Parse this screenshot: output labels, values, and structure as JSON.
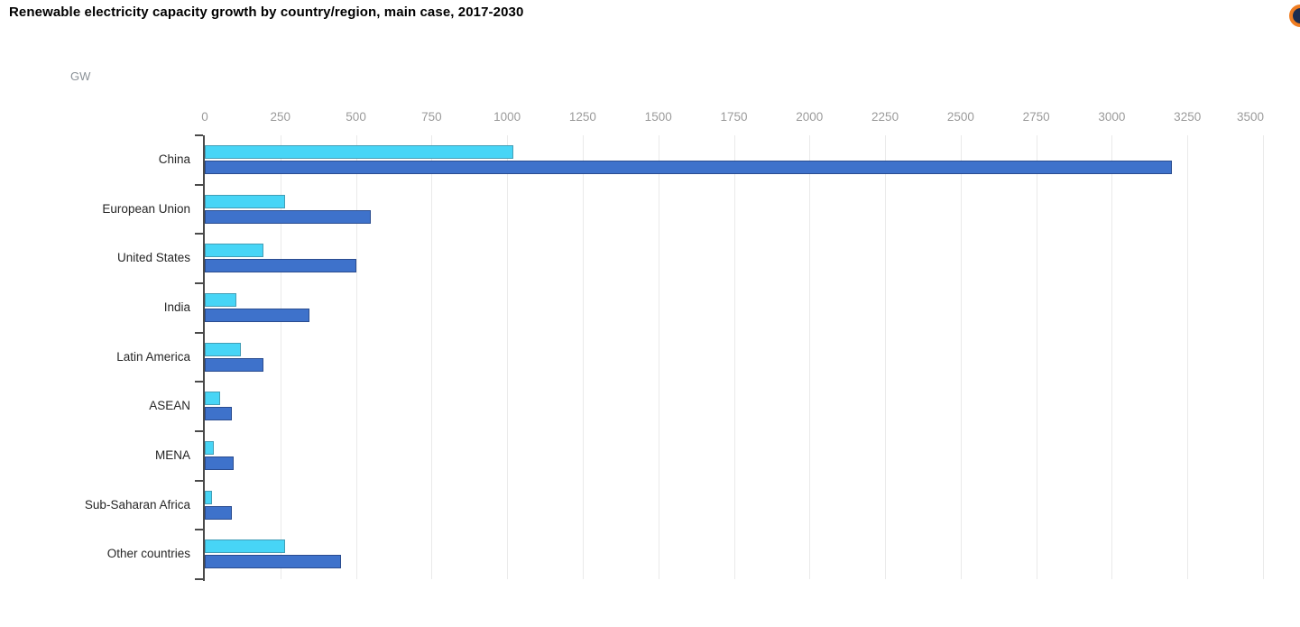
{
  "page": {
    "title": "Renewable electricity capacity growth by country/region, main case, 2017-2030",
    "unit_label": "GW"
  },
  "icons": {
    "brand_circle": "partial circle button cut off at right edge, orange ring with dark navy fill"
  },
  "colors": {
    "light_series": "#47d5f6",
    "dark_series": "#3e72cb",
    "gridline": "#eaeaea",
    "axis": "#4a4a4a",
    "tick_label": "#9b9b9b",
    "category_label": "#262626",
    "icon_ring_orange": "#ef7d22",
    "icon_fill_navy": "#1b2c50"
  },
  "chart_data": {
    "type": "bar",
    "orientation": "horizontal",
    "title": "Renewable electricity capacity growth by country/region, main case, 2017-2030",
    "xlabel": "GW",
    "ylabel": "",
    "unit": "GW",
    "categories": [
      "China",
      "European Union",
      "United States",
      "India",
      "Latin America",
      "ASEAN",
      "MENA",
      "Sub-Saharan Africa",
      "Other countries"
    ],
    "series": [
      {
        "name": "light-blue-series",
        "color": "#47d5f6",
        "values": [
          1020,
          265,
          195,
          105,
          120,
          50,
          30,
          25,
          265
        ]
      },
      {
        "name": "dark-blue-series",
        "color": "#3e72cb",
        "values": [
          3200,
          550,
          500,
          345,
          195,
          90,
          95,
          90,
          450
        ]
      }
    ],
    "xlim": [
      0,
      3500
    ],
    "xticks": [
      0,
      250,
      500,
      750,
      1000,
      1250,
      1500,
      1750,
      2000,
      2250,
      2500,
      2750,
      3000,
      3250,
      3500
    ],
    "grid": "vertical gridlines only",
    "legend": "none"
  }
}
